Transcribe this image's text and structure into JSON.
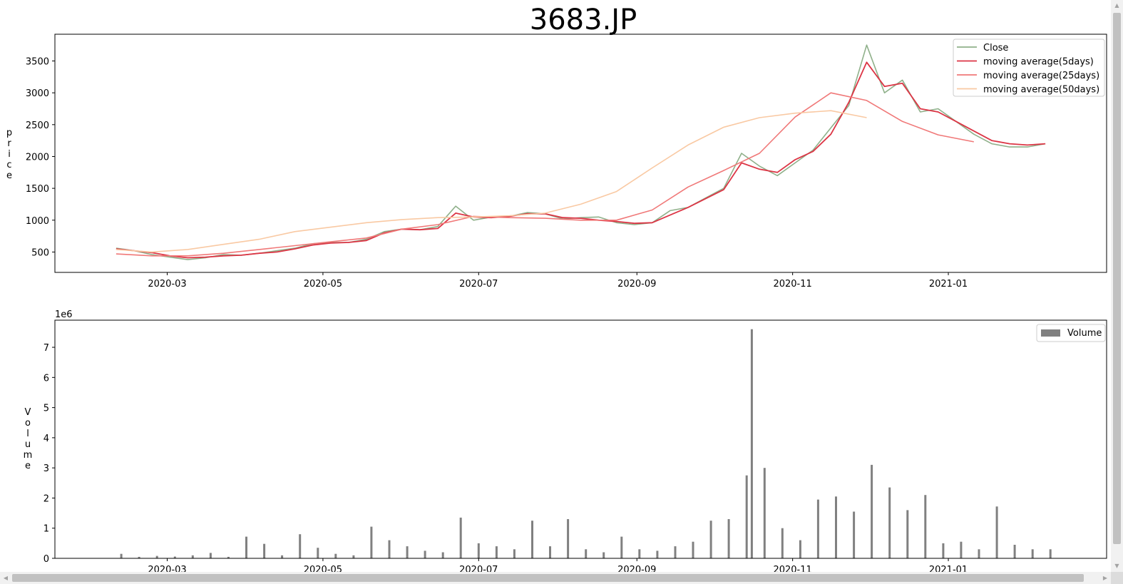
{
  "chart_data": [
    {
      "type": "line",
      "title": "3683.JP",
      "xlabel": "",
      "ylabel": "price",
      "xlim": [
        "2020-01-17",
        "2021-03-04"
      ],
      "ylim": [
        180,
        3920
      ],
      "x_ticks": [
        "2020-03",
        "2020-05",
        "2020-07",
        "2020-09",
        "2020-11",
        "2021-01"
      ],
      "y_ticks": [
        500,
        1000,
        1500,
        2000,
        2500,
        3000,
        3500
      ],
      "grid": false,
      "legend": "top-right",
      "series": [
        {
          "name": "Close",
          "color": "#8fb08a",
          "x": [
            "2020-02-10",
            "2020-02-17",
            "2020-02-24",
            "2020-03-02",
            "2020-03-09",
            "2020-03-16",
            "2020-03-23",
            "2020-03-30",
            "2020-04-06",
            "2020-04-13",
            "2020-04-20",
            "2020-04-27",
            "2020-05-04",
            "2020-05-11",
            "2020-05-18",
            "2020-05-25",
            "2020-06-01",
            "2020-06-08",
            "2020-06-15",
            "2020-06-22",
            "2020-06-29",
            "2020-07-06",
            "2020-07-13",
            "2020-07-20",
            "2020-07-27",
            "2020-08-03",
            "2020-08-10",
            "2020-08-17",
            "2020-08-24",
            "2020-08-31",
            "2020-09-07",
            "2020-09-14",
            "2020-09-21",
            "2020-09-28",
            "2020-10-05",
            "2020-10-12",
            "2020-10-19",
            "2020-10-26",
            "2020-11-02",
            "2020-11-09",
            "2020-11-16",
            "2020-11-23",
            "2020-11-30",
            "2020-12-07",
            "2020-12-14",
            "2020-12-21",
            "2020-12-28",
            "2021-01-04",
            "2021-01-11",
            "2021-01-18",
            "2021-01-25",
            "2021-02-01",
            "2021-02-08"
          ],
          "values": [
            560,
            520,
            460,
            420,
            380,
            410,
            460,
            450,
            480,
            520,
            560,
            630,
            650,
            650,
            700,
            820,
            860,
            850,
            900,
            1220,
            1000,
            1050,
            1060,
            1120,
            1100,
            1020,
            1040,
            1050,
            960,
            930,
            960,
            1150,
            1200,
            1350,
            1500,
            2050,
            1850,
            1700,
            1900,
            2100,
            2450,
            2800,
            3750,
            3000,
            3200,
            2700,
            2750,
            2550,
            2350,
            2200,
            2150,
            2150,
            2200
          ]
        },
        {
          "name": "moving average(5days)",
          "color": "#dc3545",
          "x": [
            "2020-02-10",
            "2020-02-17",
            "2020-02-24",
            "2020-03-02",
            "2020-03-09",
            "2020-03-16",
            "2020-03-23",
            "2020-03-30",
            "2020-04-06",
            "2020-04-13",
            "2020-04-20",
            "2020-04-27",
            "2020-05-04",
            "2020-05-11",
            "2020-05-18",
            "2020-05-25",
            "2020-06-01",
            "2020-06-08",
            "2020-06-15",
            "2020-06-22",
            "2020-06-29",
            "2020-07-06",
            "2020-07-13",
            "2020-07-20",
            "2020-07-27",
            "2020-08-03",
            "2020-08-10",
            "2020-08-17",
            "2020-08-24",
            "2020-08-31",
            "2020-09-07",
            "2020-09-14",
            "2020-09-21",
            "2020-09-28",
            "2020-10-05",
            "2020-10-12",
            "2020-10-19",
            "2020-10-26",
            "2020-11-02",
            "2020-11-09",
            "2020-11-16",
            "2020-11-23",
            "2020-11-30",
            "2020-12-07",
            "2020-12-14",
            "2020-12-21",
            "2020-12-28",
            "2021-01-04",
            "2021-01-11",
            "2021-01-18",
            "2021-01-25",
            "2021-02-01",
            "2021-02-08"
          ],
          "values": [
            550,
            520,
            490,
            440,
            410,
            420,
            440,
            450,
            480,
            500,
            550,
            610,
            640,
            650,
            680,
            800,
            860,
            850,
            870,
            1110,
            1050,
            1040,
            1060,
            1100,
            1100,
            1040,
            1030,
            1000,
            980,
            950,
            960,
            1080,
            1200,
            1340,
            1480,
            1900,
            1800,
            1750,
            1950,
            2080,
            2350,
            2850,
            3480,
            3100,
            3150,
            2750,
            2700,
            2550,
            2400,
            2250,
            2200,
            2180,
            2200
          ]
        },
        {
          "name": "moving average(25days)",
          "color": "#f07878",
          "x": [
            "2020-02-10",
            "2020-02-24",
            "2020-03-09",
            "2020-03-23",
            "2020-04-06",
            "2020-04-20",
            "2020-05-04",
            "2020-05-18",
            "2020-06-01",
            "2020-06-15",
            "2020-06-29",
            "2020-07-13",
            "2020-07-27",
            "2020-08-10",
            "2020-08-24",
            "2020-09-07",
            "2020-09-21",
            "2020-10-05",
            "2020-10-19",
            "2020-11-02",
            "2020-11-16",
            "2020-11-30",
            "2020-12-14",
            "2020-12-28",
            "2021-01-11"
          ],
          "values": [
            470,
            440,
            440,
            480,
            540,
            600,
            660,
            720,
            860,
            930,
            1060,
            1040,
            1030,
            1000,
            1000,
            1160,
            1520,
            1780,
            2050,
            2620,
            3000,
            2880,
            2550,
            2340,
            2230
          ]
        },
        {
          "name": "moving average(50days)",
          "color": "#f9c9a3",
          "x": [
            "2020-02-10",
            "2020-02-24",
            "2020-03-09",
            "2020-03-23",
            "2020-04-06",
            "2020-04-20",
            "2020-05-04",
            "2020-05-18",
            "2020-06-01",
            "2020-06-15",
            "2020-06-29",
            "2020-07-13",
            "2020-07-27",
            "2020-08-10",
            "2020-08-24",
            "2020-09-07",
            "2020-09-21",
            "2020-10-05",
            "2020-10-19",
            "2020-11-02",
            "2020-11-16",
            "2020-11-30"
          ],
          "values": [
            540,
            500,
            540,
            620,
            700,
            820,
            890,
            960,
            1010,
            1040,
            1050,
            1070,
            1110,
            1250,
            1450,
            1820,
            2180,
            2460,
            2610,
            2680,
            2720,
            2610
          ]
        }
      ]
    },
    {
      "type": "bar",
      "title": "",
      "xlabel": "",
      "ylabel": "Volume",
      "exponent_label": "1e6",
      "xlim": [
        "2020-01-17",
        "2021-03-04"
      ],
      "ylim": [
        0,
        7.9
      ],
      "y_ticks": [
        0,
        1,
        2,
        3,
        4,
        5,
        6,
        7
      ],
      "x_ticks": [
        "2020-03",
        "2020-05",
        "2020-07",
        "2020-09",
        "2020-11",
        "2021-01"
      ],
      "grid": false,
      "legend": "top-right",
      "series": [
        {
          "name": "Volume",
          "color": "#808080",
          "x": [
            "2020-02-12",
            "2020-02-19",
            "2020-02-26",
            "2020-03-04",
            "2020-03-11",
            "2020-03-18",
            "2020-03-25",
            "2020-04-01",
            "2020-04-08",
            "2020-04-15",
            "2020-04-22",
            "2020-04-29",
            "2020-05-06",
            "2020-05-13",
            "2020-05-20",
            "2020-05-27",
            "2020-06-03",
            "2020-06-10",
            "2020-06-17",
            "2020-06-24",
            "2020-07-01",
            "2020-07-08",
            "2020-07-15",
            "2020-07-22",
            "2020-07-29",
            "2020-08-05",
            "2020-08-12",
            "2020-08-19",
            "2020-08-26",
            "2020-09-02",
            "2020-09-09",
            "2020-09-16",
            "2020-09-23",
            "2020-09-30",
            "2020-10-07",
            "2020-10-14",
            "2020-10-16",
            "2020-10-21",
            "2020-10-28",
            "2020-11-04",
            "2020-11-11",
            "2020-11-18",
            "2020-11-25",
            "2020-12-02",
            "2020-12-09",
            "2020-12-16",
            "2020-12-23",
            "2020-12-30",
            "2021-01-06",
            "2021-01-13",
            "2021-01-20",
            "2021-01-27",
            "2021-02-03",
            "2021-02-10"
          ],
          "values": [
            0.15,
            0.05,
            0.08,
            0.06,
            0.1,
            0.18,
            0.05,
            0.72,
            0.48,
            0.1,
            0.8,
            0.35,
            0.15,
            0.1,
            1.05,
            0.6,
            0.4,
            0.25,
            0.2,
            1.35,
            0.5,
            0.4,
            0.3,
            1.25,
            0.4,
            1.3,
            0.3,
            0.2,
            0.72,
            0.3,
            0.25,
            0.4,
            0.55,
            1.25,
            1.3,
            2.75,
            7.6,
            3.0,
            1.0,
            0.6,
            1.95,
            2.05,
            1.55,
            3.1,
            2.35,
            1.6,
            2.1,
            0.5,
            0.55,
            0.3,
            1.72,
            0.45,
            0.3,
            0.3
          ]
        }
      ]
    }
  ]
}
